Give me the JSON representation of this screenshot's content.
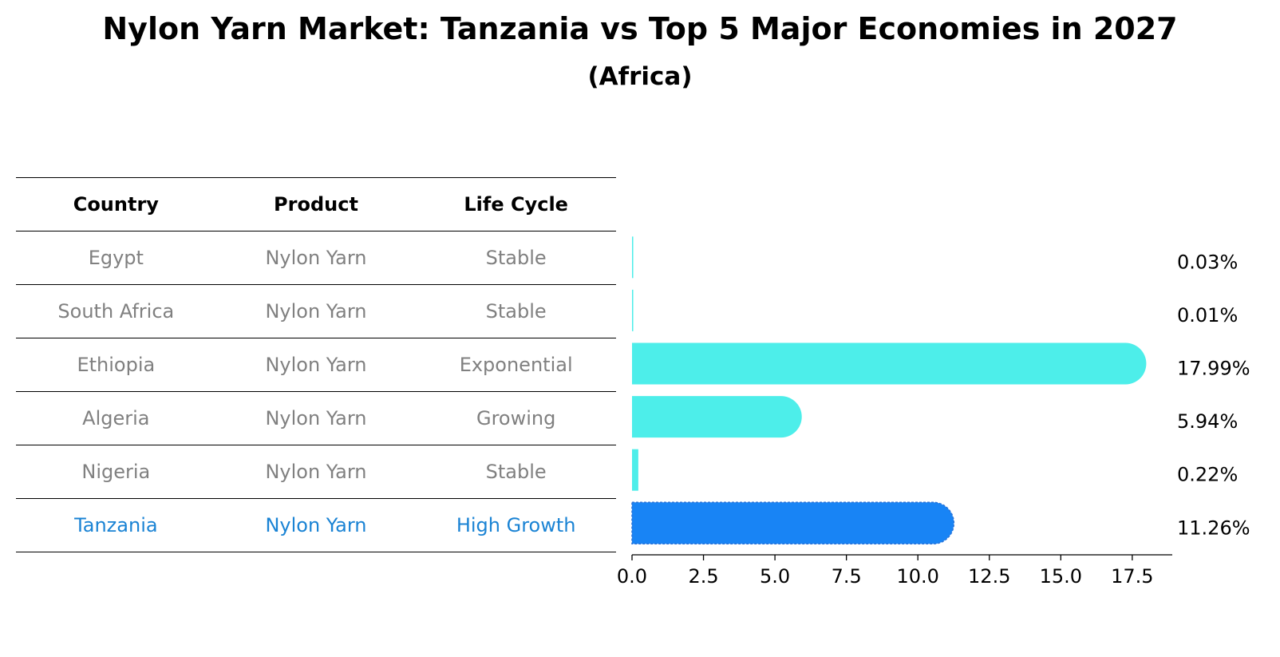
{
  "header": {
    "title": "Nylon Yarn Market: Tanzania vs Top 5 Major Economies in 2027",
    "subtitle": "(Africa)"
  },
  "table": {
    "columns": [
      "Country",
      "Product",
      "Life Cycle"
    ],
    "rows": [
      {
        "country": "Egypt",
        "product": "Nylon Yarn",
        "life_cycle": "Stable"
      },
      {
        "country": "South Africa",
        "product": "Nylon Yarn",
        "life_cycle": "Stable"
      },
      {
        "country": "Ethiopia",
        "product": "Nylon Yarn",
        "life_cycle": "Exponential"
      },
      {
        "country": "Algeria",
        "product": "Nylon Yarn",
        "life_cycle": "Growing"
      },
      {
        "country": "Nigeria",
        "product": "Nylon Yarn",
        "life_cycle": "Stable"
      },
      {
        "country": "Tanzania",
        "product": "Nylon Yarn",
        "life_cycle": "High Growth"
      }
    ]
  },
  "colors": {
    "bar": "#4deeea",
    "highlight_bar": "#1884f5",
    "highlight_text": "#1a83d4",
    "muted_text": "#808080"
  },
  "chart_data": {
    "type": "bar",
    "orientation": "horizontal",
    "title": "Nylon Yarn Market: Tanzania vs Top 5 Major Economies in 2027",
    "subtitle": "(Africa)",
    "categories": [
      "Egypt",
      "South Africa",
      "Ethiopia",
      "Algeria",
      "Nigeria",
      "Tanzania"
    ],
    "values": [
      0.03,
      0.01,
      17.99,
      5.94,
      0.22,
      11.26
    ],
    "value_labels": [
      "0.03%",
      "0.01%",
      "17.99%",
      "5.94%",
      "0.22%",
      "11.26%"
    ],
    "highlight": "Tanzania",
    "xlim": [
      0,
      18.9
    ],
    "xticks": [
      0.0,
      2.5,
      5.0,
      7.5,
      10.0,
      12.5,
      15.0,
      17.5
    ],
    "xtick_labels": [
      "0.0",
      "2.5",
      "5.0",
      "7.5",
      "10.0",
      "12.5",
      "15.0",
      "17.5"
    ],
    "xlabel": "",
    "ylabel": "",
    "grid": false
  }
}
